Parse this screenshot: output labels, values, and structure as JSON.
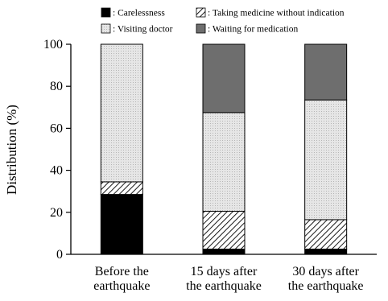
{
  "chart_data": {
    "type": "bar",
    "stacked": true,
    "categories": [
      [
        "Before the",
        "earthquake"
      ],
      [
        "15 days after",
        "the earthquake"
      ],
      [
        "30 days after",
        "the earthquake"
      ]
    ],
    "series": [
      {
        "name": ": Carelessness",
        "values": [
          28.5,
          2.5,
          2.5
        ],
        "fill": "solid",
        "color": "#000000"
      },
      {
        "name": ": Taking medicine without indication",
        "values": [
          6,
          18,
          14
        ],
        "fill": "hatch",
        "color": "#000000"
      },
      {
        "name": ": Visiting doctor",
        "values": [
          65.5,
          47,
          57
        ],
        "fill": "dots",
        "color": "#e6e6e6"
      },
      {
        "name": ": Waiting for medication",
        "values": [
          0,
          32.5,
          26.5
        ],
        "fill": "solid",
        "color": "#6e6e6e"
      }
    ],
    "ylabel": "Distribution (%)",
    "xlabel": "",
    "ylim": [
      0,
      100
    ],
    "yticks": [
      "0",
      "20",
      "40",
      "60",
      "80",
      "100"
    ],
    "legend_position": "top",
    "grid": false
  }
}
